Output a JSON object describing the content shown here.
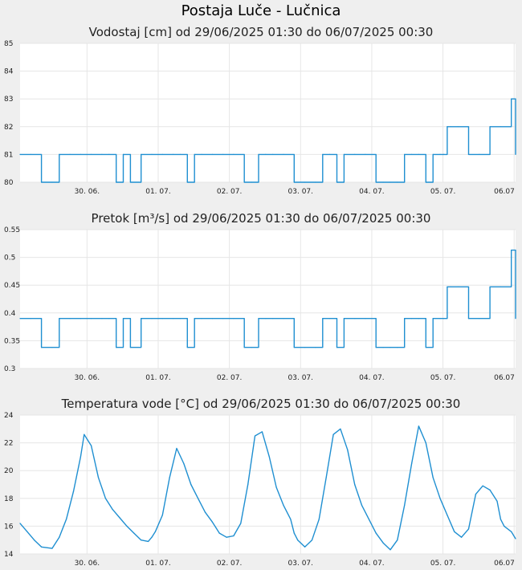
{
  "page": {
    "title": "Postaja Luče - Lučnica"
  },
  "colors": {
    "line": "#1f8fd1",
    "plot_bg": "#ffffff",
    "grid": "#e6e6e6",
    "page_bg": "#efefef"
  },
  "chart_data": [
    {
      "type": "line",
      "title": "Vodostaj [cm] od 29/06/2025 01:30 do 06/07/2025 00:30",
      "ylim": [
        80,
        85
      ],
      "yticks": [
        "80",
        "81",
        "82",
        "83",
        "84",
        "85"
      ],
      "xticks": [
        "30. 06.",
        "01. 07.",
        "02. 07.",
        "03. 07.",
        "04. 07.",
        "05. 07.",
        "06.07"
      ],
      "grid": true,
      "series": [
        {
          "x": [
            0.0,
            0.15,
            0.3,
            0.45,
            0.55,
            0.7,
            0.85,
            1.0,
            1.15,
            1.25,
            1.35,
            1.45,
            1.55,
            1.7,
            1.85,
            2.0,
            2.15,
            2.25,
            2.35,
            2.45,
            2.55,
            2.7,
            2.85,
            3.0,
            3.15,
            3.25,
            3.35,
            3.45,
            3.55,
            3.7,
            3.85,
            4.0,
            4.15,
            4.25,
            4.35,
            4.45,
            4.55,
            4.7,
            4.85,
            5.0,
            5.1,
            5.2,
            5.3,
            5.4,
            5.5,
            5.6,
            5.7,
            5.8,
            5.9,
            5.95,
            6.0,
            6.05,
            6.15,
            6.3,
            6.45,
            6.6,
            6.75,
            6.9,
            6.96
          ],
          "y": [
            81,
            81,
            80,
            80,
            81,
            81,
            81,
            81,
            81,
            81,
            80,
            81,
            80,
            81,
            81,
            81,
            81,
            81,
            80,
            81,
            81,
            81,
            81,
            81,
            80,
            80,
            81,
            81,
            81,
            81,
            80,
            80,
            80,
            81,
            81,
            80,
            81,
            81,
            81,
            80,
            80,
            80,
            80,
            81,
            81,
            81,
            80,
            81,
            81,
            81,
            82,
            82,
            82,
            81,
            81,
            82,
            82,
            83,
            81
          ]
        }
      ]
    },
    {
      "type": "line",
      "title": "Pretok [m³/s] od 29/06/2025 01:30 do 06/07/2025 00:30",
      "ylim": [
        0.3,
        0.55
      ],
      "yticks": [
        "0.3",
        "0.35",
        "0.4",
        "0.45",
        "0.5",
        "0.55"
      ],
      "xticks": [
        "30. 06.",
        "01. 07.",
        "02. 07.",
        "03. 07.",
        "04. 07.",
        "05. 07.",
        "06.07"
      ],
      "grid": true,
      "series": [
        {
          "x": [
            0.0,
            0.15,
            0.3,
            0.45,
            0.55,
            0.7,
            0.85,
            1.0,
            1.15,
            1.25,
            1.35,
            1.45,
            1.55,
            1.7,
            1.85,
            2.0,
            2.15,
            2.25,
            2.35,
            2.45,
            2.55,
            2.7,
            2.85,
            3.0,
            3.15,
            3.25,
            3.35,
            3.45,
            3.55,
            3.7,
            3.85,
            4.0,
            4.15,
            4.25,
            4.35,
            4.45,
            4.55,
            4.7,
            4.85,
            5.0,
            5.1,
            5.2,
            5.3,
            5.4,
            5.5,
            5.6,
            5.7,
            5.8,
            5.9,
            5.95,
            6.0,
            6.05,
            6.15,
            6.3,
            6.45,
            6.6,
            6.75,
            6.9,
            6.96
          ],
          "y": [
            0.39,
            0.39,
            0.338,
            0.338,
            0.39,
            0.39,
            0.39,
            0.39,
            0.39,
            0.39,
            0.338,
            0.39,
            0.338,
            0.39,
            0.39,
            0.39,
            0.39,
            0.39,
            0.338,
            0.39,
            0.39,
            0.39,
            0.39,
            0.39,
            0.338,
            0.338,
            0.39,
            0.39,
            0.39,
            0.39,
            0.338,
            0.338,
            0.338,
            0.39,
            0.39,
            0.338,
            0.39,
            0.39,
            0.39,
            0.338,
            0.338,
            0.338,
            0.338,
            0.39,
            0.39,
            0.39,
            0.338,
            0.39,
            0.39,
            0.39,
            0.447,
            0.447,
            0.447,
            0.39,
            0.39,
            0.447,
            0.447,
            0.513,
            0.39
          ]
        }
      ]
    },
    {
      "type": "line",
      "title": "Temperatura vode [°C] od 29/06/2025 01:30 do 06/07/2025 00:30",
      "ylim": [
        14,
        24
      ],
      "yticks": [
        "14",
        "16",
        "18",
        "20",
        "22",
        "24"
      ],
      "xticks": [
        "30. 06.",
        "01. 07.",
        "02. 07.",
        "03. 07.",
        "04. 07.",
        "05. 07.",
        "06.07"
      ],
      "grid": true,
      "series": [
        {
          "x": [
            0.0,
            0.1,
            0.2,
            0.3,
            0.45,
            0.55,
            0.65,
            0.75,
            0.85,
            0.9,
            1.0,
            1.1,
            1.2,
            1.3,
            1.4,
            1.5,
            1.6,
            1.7,
            1.8,
            1.85,
            1.9,
            2.0,
            2.1,
            2.2,
            2.3,
            2.4,
            2.5,
            2.6,
            2.7,
            2.75,
            2.8,
            2.9,
            3.0,
            3.1,
            3.2,
            3.3,
            3.4,
            3.5,
            3.6,
            3.7,
            3.8,
            3.85,
            3.9,
            4.0,
            4.1,
            4.2,
            4.3,
            4.4,
            4.5,
            4.6,
            4.7,
            4.8,
            4.9,
            5.0,
            5.1,
            5.2,
            5.3,
            5.4,
            5.5,
            5.6,
            5.7,
            5.8,
            5.9,
            6.0,
            6.1,
            6.2,
            6.3,
            6.4,
            6.5,
            6.6,
            6.7,
            6.75,
            6.8,
            6.9,
            6.96
          ],
          "y": [
            16.2,
            15.6,
            15.0,
            14.5,
            14.4,
            15.2,
            16.5,
            18.5,
            21.0,
            22.6,
            21.8,
            19.5,
            18.0,
            17.2,
            16.6,
            16.0,
            15.5,
            15.0,
            14.9,
            15.2,
            15.6,
            16.8,
            19.5,
            21.6,
            20.5,
            19.0,
            18.0,
            17.0,
            16.3,
            15.9,
            15.5,
            15.2,
            15.3,
            16.2,
            19.0,
            22.5,
            22.8,
            21.0,
            18.8,
            17.5,
            16.5,
            15.5,
            15.0,
            14.5,
            15.0,
            16.5,
            19.5,
            22.6,
            23.0,
            21.5,
            19.0,
            17.5,
            16.5,
            15.5,
            14.8,
            14.3,
            15.0,
            17.5,
            20.5,
            23.2,
            22.0,
            19.5,
            18.0,
            16.8,
            15.6,
            15.2,
            15.8,
            18.3,
            18.9,
            18.6,
            17.8,
            16.5,
            16.0,
            15.6,
            15.1
          ]
        }
      ]
    }
  ]
}
